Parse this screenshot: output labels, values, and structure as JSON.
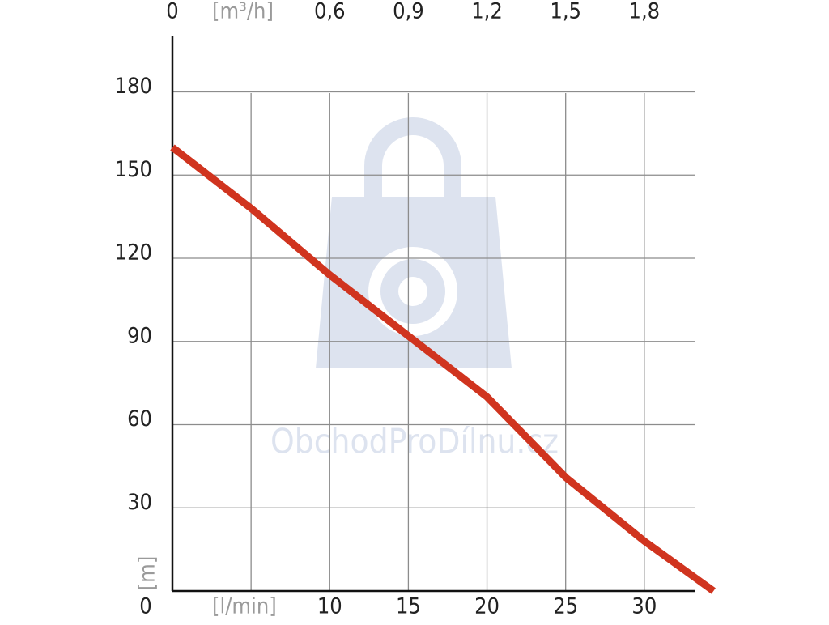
{
  "chart_data": {
    "type": "line",
    "watermark": "ObchodProDílnu.cz",
    "xlabel": "[l/min]",
    "x2label": "[m³/h]",
    "ylabel": "[m]",
    "xlim": [
      0,
      33.2
    ],
    "xticks": [
      0,
      {
        "value": 5,
        "label": null
      },
      10,
      15,
      20,
      25,
      30
    ],
    "x2lim": [
      0,
      1.992
    ],
    "x2ticks": [
      0,
      {
        "value": 0.6,
        "label": "0,6"
      },
      {
        "value": 0.9,
        "label": "0,9"
      },
      {
        "value": 1.2,
        "label": "1,2"
      },
      {
        "value": 1.5,
        "label": "1,5"
      },
      {
        "value": 1.8,
        "label": "1,8"
      }
    ],
    "ylim": [
      0,
      200
    ],
    "yticks": [
      30,
      60,
      90,
      120,
      150,
      180
    ],
    "grid": true,
    "series": [
      {
        "color": "#d0341f",
        "x": [
          0,
          5,
          10,
          15,
          17.5,
          20,
          25,
          30,
          34.4
        ],
        "values": [
          160,
          138,
          114,
          92,
          81,
          70,
          41,
          18,
          0
        ]
      }
    ]
  }
}
